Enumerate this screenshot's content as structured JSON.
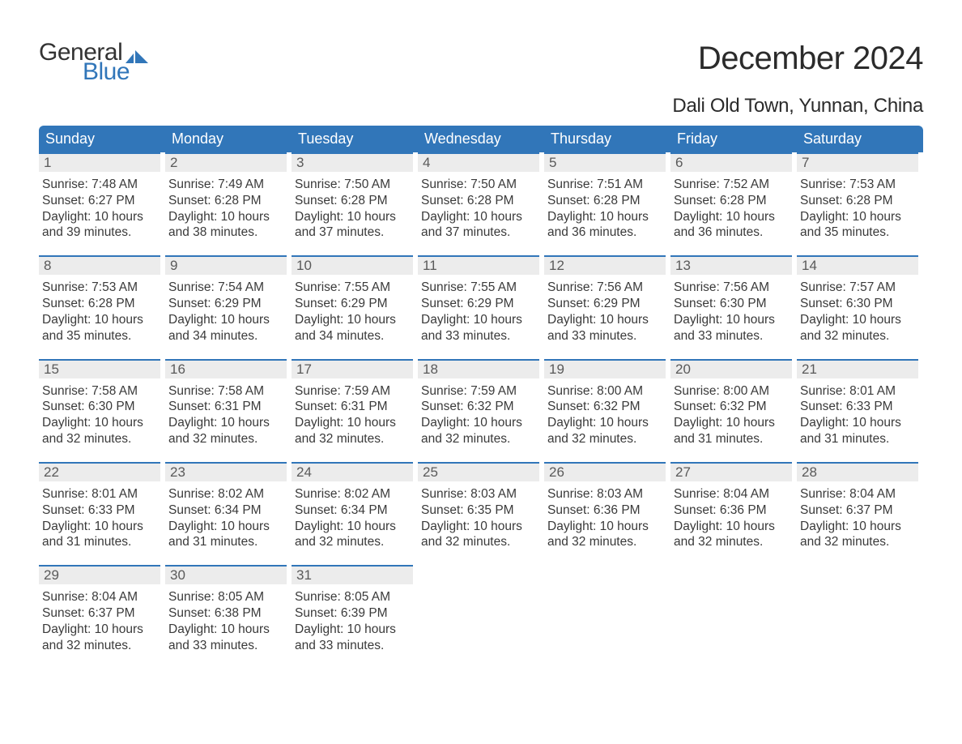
{
  "logo": {
    "text1": "General",
    "text2": "Blue",
    "flag_color": "#3176b9",
    "text1_color": "#333333"
  },
  "title": "December 2024",
  "location": "Dali Old Town, Yunnan, China",
  "colors": {
    "header_bg": "#3176b9",
    "header_text": "#ffffff",
    "daynum_bg": "#ececec",
    "daynum_border": "#3176b9",
    "daynum_text": "#5a5a5a",
    "body_text": "#3a3a3a",
    "background": "#ffffff"
  },
  "table": {
    "columns": [
      "Sunday",
      "Monday",
      "Tuesday",
      "Wednesday",
      "Thursday",
      "Friday",
      "Saturday"
    ],
    "weeks": [
      [
        {
          "n": "1",
          "sunrise": "Sunrise: 7:48 AM",
          "sunset": "Sunset: 6:27 PM",
          "daylight": "Daylight: 10 hours and 39 minutes."
        },
        {
          "n": "2",
          "sunrise": "Sunrise: 7:49 AM",
          "sunset": "Sunset: 6:28 PM",
          "daylight": "Daylight: 10 hours and 38 minutes."
        },
        {
          "n": "3",
          "sunrise": "Sunrise: 7:50 AM",
          "sunset": "Sunset: 6:28 PM",
          "daylight": "Daylight: 10 hours and 37 minutes."
        },
        {
          "n": "4",
          "sunrise": "Sunrise: 7:50 AM",
          "sunset": "Sunset: 6:28 PM",
          "daylight": "Daylight: 10 hours and 37 minutes."
        },
        {
          "n": "5",
          "sunrise": "Sunrise: 7:51 AM",
          "sunset": "Sunset: 6:28 PM",
          "daylight": "Daylight: 10 hours and 36 minutes."
        },
        {
          "n": "6",
          "sunrise": "Sunrise: 7:52 AM",
          "sunset": "Sunset: 6:28 PM",
          "daylight": "Daylight: 10 hours and 36 minutes."
        },
        {
          "n": "7",
          "sunrise": "Sunrise: 7:53 AM",
          "sunset": "Sunset: 6:28 PM",
          "daylight": "Daylight: 10 hours and 35 minutes."
        }
      ],
      [
        {
          "n": "8",
          "sunrise": "Sunrise: 7:53 AM",
          "sunset": "Sunset: 6:28 PM",
          "daylight": "Daylight: 10 hours and 35 minutes."
        },
        {
          "n": "9",
          "sunrise": "Sunrise: 7:54 AM",
          "sunset": "Sunset: 6:29 PM",
          "daylight": "Daylight: 10 hours and 34 minutes."
        },
        {
          "n": "10",
          "sunrise": "Sunrise: 7:55 AM",
          "sunset": "Sunset: 6:29 PM",
          "daylight": "Daylight: 10 hours and 34 minutes."
        },
        {
          "n": "11",
          "sunrise": "Sunrise: 7:55 AM",
          "sunset": "Sunset: 6:29 PM",
          "daylight": "Daylight: 10 hours and 33 minutes."
        },
        {
          "n": "12",
          "sunrise": "Sunrise: 7:56 AM",
          "sunset": "Sunset: 6:29 PM",
          "daylight": "Daylight: 10 hours and 33 minutes."
        },
        {
          "n": "13",
          "sunrise": "Sunrise: 7:56 AM",
          "sunset": "Sunset: 6:30 PM",
          "daylight": "Daylight: 10 hours and 33 minutes."
        },
        {
          "n": "14",
          "sunrise": "Sunrise: 7:57 AM",
          "sunset": "Sunset: 6:30 PM",
          "daylight": "Daylight: 10 hours and 32 minutes."
        }
      ],
      [
        {
          "n": "15",
          "sunrise": "Sunrise: 7:58 AM",
          "sunset": "Sunset: 6:30 PM",
          "daylight": "Daylight: 10 hours and 32 minutes."
        },
        {
          "n": "16",
          "sunrise": "Sunrise: 7:58 AM",
          "sunset": "Sunset: 6:31 PM",
          "daylight": "Daylight: 10 hours and 32 minutes."
        },
        {
          "n": "17",
          "sunrise": "Sunrise: 7:59 AM",
          "sunset": "Sunset: 6:31 PM",
          "daylight": "Daylight: 10 hours and 32 minutes."
        },
        {
          "n": "18",
          "sunrise": "Sunrise: 7:59 AM",
          "sunset": "Sunset: 6:32 PM",
          "daylight": "Daylight: 10 hours and 32 minutes."
        },
        {
          "n": "19",
          "sunrise": "Sunrise: 8:00 AM",
          "sunset": "Sunset: 6:32 PM",
          "daylight": "Daylight: 10 hours and 32 minutes."
        },
        {
          "n": "20",
          "sunrise": "Sunrise: 8:00 AM",
          "sunset": "Sunset: 6:32 PM",
          "daylight": "Daylight: 10 hours and 31 minutes."
        },
        {
          "n": "21",
          "sunrise": "Sunrise: 8:01 AM",
          "sunset": "Sunset: 6:33 PM",
          "daylight": "Daylight: 10 hours and 31 minutes."
        }
      ],
      [
        {
          "n": "22",
          "sunrise": "Sunrise: 8:01 AM",
          "sunset": "Sunset: 6:33 PM",
          "daylight": "Daylight: 10 hours and 31 minutes."
        },
        {
          "n": "23",
          "sunrise": "Sunrise: 8:02 AM",
          "sunset": "Sunset: 6:34 PM",
          "daylight": "Daylight: 10 hours and 31 minutes."
        },
        {
          "n": "24",
          "sunrise": "Sunrise: 8:02 AM",
          "sunset": "Sunset: 6:34 PM",
          "daylight": "Daylight: 10 hours and 32 minutes."
        },
        {
          "n": "25",
          "sunrise": "Sunrise: 8:03 AM",
          "sunset": "Sunset: 6:35 PM",
          "daylight": "Daylight: 10 hours and 32 minutes."
        },
        {
          "n": "26",
          "sunrise": "Sunrise: 8:03 AM",
          "sunset": "Sunset: 6:36 PM",
          "daylight": "Daylight: 10 hours and 32 minutes."
        },
        {
          "n": "27",
          "sunrise": "Sunrise: 8:04 AM",
          "sunset": "Sunset: 6:36 PM",
          "daylight": "Daylight: 10 hours and 32 minutes."
        },
        {
          "n": "28",
          "sunrise": "Sunrise: 8:04 AM",
          "sunset": "Sunset: 6:37 PM",
          "daylight": "Daylight: 10 hours and 32 minutes."
        }
      ],
      [
        {
          "n": "29",
          "sunrise": "Sunrise: 8:04 AM",
          "sunset": "Sunset: 6:37 PM",
          "daylight": "Daylight: 10 hours and 32 minutes."
        },
        {
          "n": "30",
          "sunrise": "Sunrise: 8:05 AM",
          "sunset": "Sunset: 6:38 PM",
          "daylight": "Daylight: 10 hours and 33 minutes."
        },
        {
          "n": "31",
          "sunrise": "Sunrise: 8:05 AM",
          "sunset": "Sunset: 6:39 PM",
          "daylight": "Daylight: 10 hours and 33 minutes."
        },
        null,
        null,
        null,
        null
      ]
    ]
  }
}
